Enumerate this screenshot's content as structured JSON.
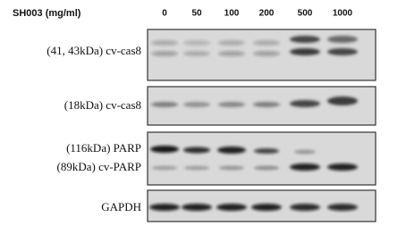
{
  "header": {
    "label": "SH003 (mg/ml)",
    "lanes": [
      "0",
      "50",
      "100",
      "200",
      "500",
      "1000"
    ]
  },
  "panels": [
    {
      "labels": [
        "(41, 43kDa) cv-cas8"
      ]
    },
    {
      "labels": [
        "(18kDa) cv-cas8"
      ]
    },
    {
      "labels": [
        "(116kDa) PARP",
        "(89kDa) cv-PARP"
      ]
    },
    {
      "labels": [
        "GAPDH"
      ]
    }
  ]
}
